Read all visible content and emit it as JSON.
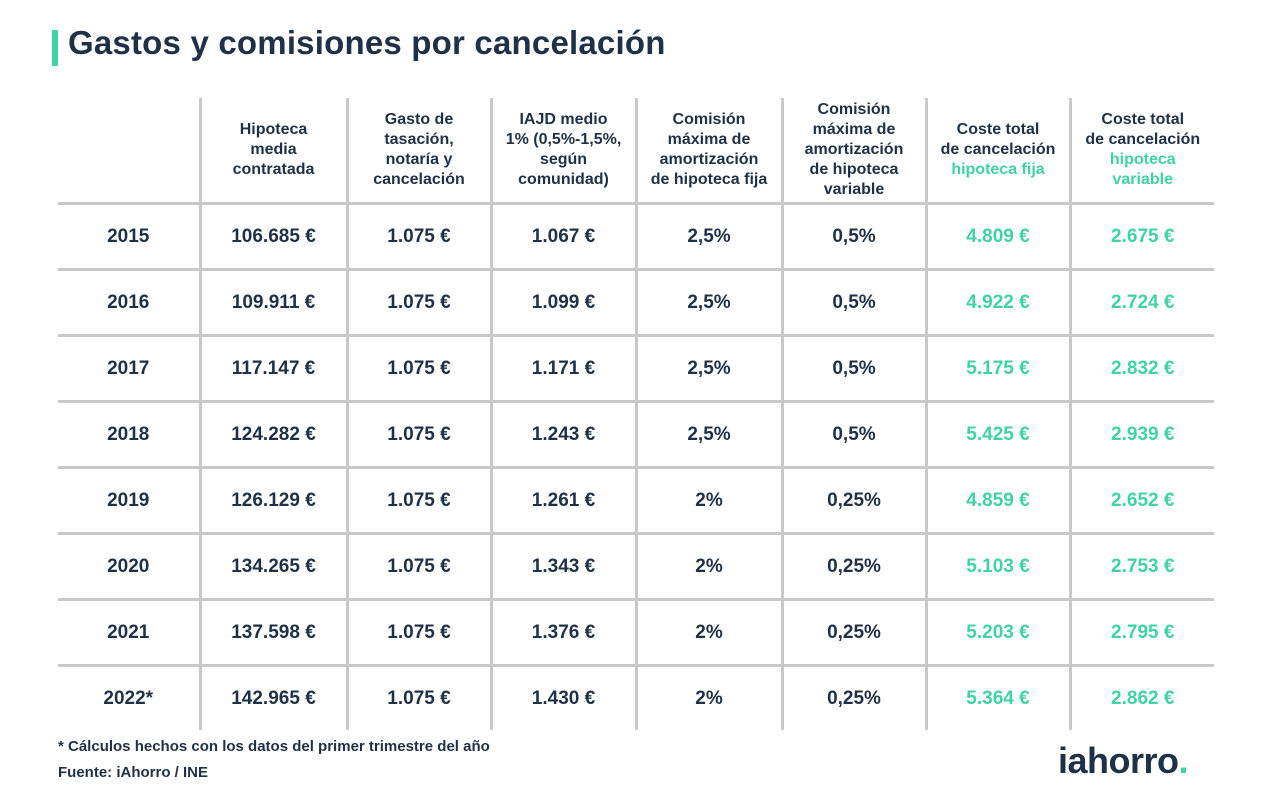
{
  "title": "Gastos y comisiones por cancelación",
  "colors": {
    "accent": "#3fd3a6",
    "text": "#1f3147",
    "grid": "#c9c9c9"
  },
  "table": {
    "headers": [
      {
        "lines": [
          "Hipoteca",
          "media",
          "contratada"
        ],
        "highlight": []
      },
      {
        "lines": [
          "Gasto de",
          "tasación,",
          "notaría y",
          "cancelación"
        ],
        "highlight": []
      },
      {
        "lines": [
          "IAJD medio",
          "1% (0,5%-1,5%,",
          "según",
          "comunidad)"
        ],
        "highlight": []
      },
      {
        "lines": [
          "Comisión",
          "máxima de",
          "amortización",
          "de hipoteca fija"
        ],
        "highlight": []
      },
      {
        "lines": [
          "Comisión",
          "máxima de",
          "amortización",
          "de hipoteca",
          "variable"
        ],
        "highlight": []
      },
      {
        "lines": [
          "Coste total",
          "de cancelación",
          "hipoteca fija"
        ],
        "highlight": [
          2
        ]
      },
      {
        "lines": [
          "Coste total",
          "de cancelación",
          "hipoteca",
          "variable"
        ],
        "highlight": [
          2,
          3
        ]
      }
    ],
    "rows": [
      {
        "year": "2015",
        "values": [
          "106.685 €",
          "1.075 €",
          "1.067 €",
          "2,5%",
          "0,5%",
          "4.809 €",
          "2.675 €"
        ]
      },
      {
        "year": "2016",
        "values": [
          "109.911 €",
          "1.075 €",
          "1.099 €",
          "2,5%",
          "0,5%",
          "4.922 €",
          "2.724 €"
        ]
      },
      {
        "year": "2017",
        "values": [
          "117.147 €",
          "1.075 €",
          "1.171 €",
          "2,5%",
          "0,5%",
          "5.175 €",
          "2.832 €"
        ]
      },
      {
        "year": "2018",
        "values": [
          "124.282 €",
          "1.075 €",
          "1.243 €",
          "2,5%",
          "0,5%",
          "5.425 €",
          "2.939 €"
        ]
      },
      {
        "year": "2019",
        "values": [
          "126.129 €",
          "1.075 €",
          "1.261 €",
          "2%",
          "0,25%",
          "4.859 €",
          "2.652 €"
        ]
      },
      {
        "year": "2020",
        "values": [
          "134.265 €",
          "1.075 €",
          "1.343 €",
          "2%",
          "0,25%",
          "5.103 €",
          "2.753 €"
        ]
      },
      {
        "year": "2021",
        "values": [
          "137.598 €",
          "1.075 €",
          "1.376 €",
          "2%",
          "0,25%",
          "5.203 €",
          "2.795 €"
        ]
      },
      {
        "year": "2022*",
        "values": [
          "142.965 €",
          "1.075 €",
          "1.430 €",
          "2%",
          "0,25%",
          "5.364 €",
          "2.862 €"
        ]
      }
    ],
    "green_columns": [
      5,
      6
    ]
  },
  "footnote": "* Cálculos hechos con los datos del primer trimestre del año",
  "source": "Fuente: iAhorro / INE",
  "logo": {
    "text": "iahorro",
    "dot": "."
  }
}
